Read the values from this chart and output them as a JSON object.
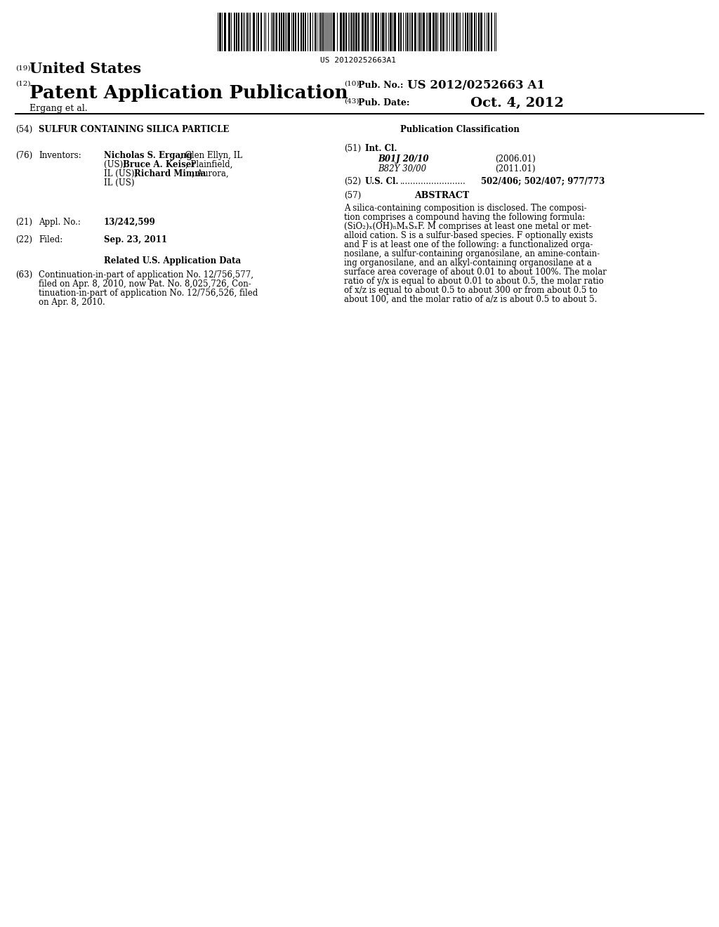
{
  "barcode_text": "US 20120252663A1",
  "title_19": "(19)",
  "title_19_text": "United States",
  "title_12": "(12)",
  "title_12_text": "Patent Application Publication",
  "title_10": "(10)",
  "title_10_label": "Pub. No.:",
  "title_10_value": "US 2012/0252663 A1",
  "title_43": "(43)",
  "title_43_label": "Pub. Date:",
  "title_43_value": "Oct. 4, 2012",
  "assignee_name": "Ergang et al.",
  "section54_num": "(54)",
  "section54_title": "SULFUR CONTAINING SILICA PARTICLE",
  "pub_class_title": "Publication Classification",
  "section51_num": "(51)",
  "section51_label": "Int. Cl.",
  "section51_class1": "B01J 20/10",
  "section51_class1_year": "(2006.01)",
  "section51_class2": "B82Y 30/00",
  "section51_class2_year": "(2011.01)",
  "section52_num": "(52)",
  "section52_label": "U.S. Cl.",
  "section52_value": "502/406; 502/407; 977/773",
  "section57_num": "(57)",
  "section57_label": "ABSTRACT",
  "abstract_text": "A silica-containing composition is disclosed. The composition comprises a compound having the following formula: (SiO₂)ₓ(OH)ₙMₓSₓF. M comprises at least one metal or metalloid cation. S is a sulfur-based species. F optionally exists and F is at least one of the following: a functionalized organosilane, a sulfur-containing organosilane, an amine-containing organosilane, and an alkyl-containing organosilane at a surface area coverage of about 0.01 to about 100%. The molar ratio of y/x is equal to about 0.01 to about 0.5, the molar ratio of x/z is equal to about 0.5 to about 300 or from about 0.5 to about 100, and the molar ratio of a/z is about 0.5 to about 5.",
  "section76_num": "(76)",
  "section76_label": "Inventors:",
  "section76_inventors": "Nicholas S. Ergang, Glen Ellyn, IL (US); Bruce A. Keiser, Plainfield, IL (US); Richard Mimna, Aurora, IL (US)",
  "section21_num": "(21)",
  "section21_label": "Appl. No.:",
  "section21_value": "13/242,599",
  "section22_num": "(22)",
  "section22_label": "Filed:",
  "section22_value": "Sep. 23, 2011",
  "related_title": "Related U.S. Application Data",
  "section63_num": "(63)",
  "section63_text": "Continuation-in-part of application No. 12/756,577, filed on Apr. 8, 2010, now Pat. No. 8,025,726, Continuation-in-part of application No. 12/756,526, filed on Apr. 8, 2010.",
  "bg_color": "#ffffff",
  "text_color": "#000000"
}
